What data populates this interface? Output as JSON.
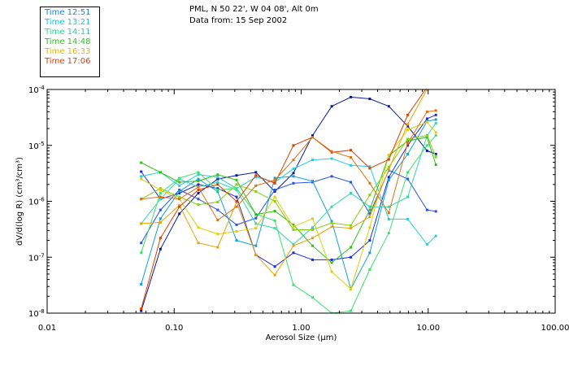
{
  "header": {
    "line1": "PML, N 50 22', W 04 08', Alt 0m",
    "line2": "Data from: 15 Sep 2002"
  },
  "legend": [
    {
      "label": "Time 12:51",
      "color": "#1a7fd8"
    },
    {
      "label": "Time 13:21",
      "color": "#10c8d8"
    },
    {
      "label": "Time 14:11",
      "color": "#20d890"
    },
    {
      "label": "Time 14:48",
      "color": "#30c020"
    },
    {
      "label": "Time 16:33",
      "color": "#e8b400"
    },
    {
      "label": "Time 17:06",
      "color": "#d84010"
    }
  ],
  "chart_data": {
    "type": "line",
    "title": "",
    "xlabel": "Aerosol Size (μm)",
    "ylabel": "dV/d(log R) (cm³/cm³)",
    "xscale": "log",
    "yscale": "log",
    "xlim": [
      0.01,
      100
    ],
    "ylim": [
      1e-08,
      0.0001
    ],
    "xticks": [
      {
        "value": 0.01,
        "label": "0.01"
      },
      {
        "value": 0.1,
        "label": "0.10"
      },
      {
        "value": 1,
        "label": "1.00"
      },
      {
        "value": 10,
        "label": "10.00"
      },
      {
        "value": 100,
        "label": "100.00"
      }
    ],
    "yticks": [
      {
        "value": 1e-08,
        "base": "10",
        "exp": "-8"
      },
      {
        "value": 1e-07,
        "base": "10",
        "exp": "-7"
      },
      {
        "value": 1e-06,
        "base": "10",
        "exp": "-6"
      },
      {
        "value": 1e-05,
        "base": "10",
        "exp": "-5"
      },
      {
        "value": 0.0001,
        "base": "10",
        "exp": "-4"
      }
    ],
    "x": [
      0.055,
      0.078,
      0.11,
      0.155,
      0.22,
      0.31,
      0.44,
      0.62,
      0.87,
      1.23,
      1.74,
      2.46,
      3.47,
      4.9,
      6.9,
      9.8,
      11.5
    ],
    "series": [
      {
        "name": "Time 12:51 (a)",
        "color": "#0a1a9a",
        "values": [
          1.1e-08,
          1.4e-07,
          6e-07,
          1.4e-06,
          2.5e-06,
          2.9e-06,
          3.3e-06,
          1.5e-06,
          3.2e-06,
          1.5e-05,
          5e-05,
          7.3e-05,
          6.8e-05,
          5e-05,
          2.2e-05,
          8e-06,
          7e-06
        ]
      },
      {
        "name": "Time 12:51 (b)",
        "color": "#1a2ad8",
        "values": [
          3.4e-06,
          1.1e-06,
          1.4e-06,
          2e-06,
          1.7e-06,
          1.2e-06,
          1.1e-07,
          6.8e-08,
          1.2e-07,
          9e-08,
          9e-08,
          1e-07,
          2e-07,
          2.7e-06,
          1e-05,
          3e-05,
          3.5e-05
        ]
      },
      {
        "name": "Time 12:51 (c)",
        "color": "#2a50e8",
        "values": [
          1.8e-07,
          7e-07,
          1.6e-06,
          1.1e-06,
          7e-07,
          3.8e-07,
          5e-07,
          1.6e-06,
          2.1e-06,
          2.2e-06,
          2.8e-06,
          2.2e-06,
          6e-07,
          3.6e-06,
          2.5e-06,
          7e-07,
          6.6e-07
        ]
      },
      {
        "name": "Time 13:21 (a)",
        "color": "#10a0e0",
        "values": [
          3.3e-08,
          4.9e-07,
          1.5e-06,
          2.5e-06,
          1.5e-06,
          2e-07,
          1.6e-07,
          2.6e-06,
          2.8e-06,
          2.3e-06,
          4.4e-07,
          2.7e-08,
          1.2e-07,
          2.4e-06,
          7e-06,
          2.7e-05,
          2.9e-05
        ]
      },
      {
        "name": "Time 13:21 (b)",
        "color": "#20d0e0",
        "values": [
          2.8e-06,
          3.3e-06,
          1.9e-06,
          3e-06,
          2.7e-06,
          1.7e-06,
          2.7e-06,
          2.2e-06,
          3.8e-06,
          5.5e-06,
          5.8e-06,
          4.4e-06,
          4.2e-06,
          4.8e-07,
          4.8e-07,
          1.7e-07,
          2.4e-07
        ]
      },
      {
        "name": "Time 13:21 (c)",
        "color": "#30d8b0",
        "values": [
          4e-07,
          1.1e-06,
          2.5e-06,
          1.8e-06,
          2.2e-06,
          1.6e-06,
          4e-07,
          3.3e-07,
          1.7e-07,
          3.4e-07,
          8e-07,
          1.4e-06,
          8e-07,
          8e-07,
          1.2e-06,
          1.5e-05,
          2.5e-05
        ]
      },
      {
        "name": "Time 14:11",
        "color": "#40e070",
        "values": [
          1.2e-07,
          1.4e-06,
          2.6e-06,
          3.3e-06,
          1.6e-06,
          1.7e-06,
          5.9e-07,
          4.5e-07,
          3.2e-08,
          1.9e-08,
          1e-08,
          1.1e-08,
          6e-08,
          2.7e-07,
          3.3e-06,
          1e-05,
          1.5e-05
        ]
      },
      {
        "name": "Time 14:48 (a)",
        "color": "#30c010",
        "values": [
          4.9e-06,
          3.3e-06,
          2.2e-06,
          2.3e-06,
          3e-06,
          2.4e-06,
          5.8e-07,
          6.7e-07,
          3.8e-07,
          1.6e-07,
          8e-08,
          1.5e-07,
          7e-07,
          6.6e-06,
          1.2e-05,
          1.4e-05,
          4.5e-06
        ]
      },
      {
        "name": "Time 14:48 (b)",
        "color": "#80d010",
        "values": [
          1.1e-06,
          1.7e-06,
          1.2e-06,
          8.7e-07,
          9.7e-07,
          2e-06,
          1.5e-06,
          1e-06,
          3.1e-07,
          3.1e-07,
          4.1e-07,
          3.7e-07,
          1.3e-06,
          4.1e-06,
          1.3e-05,
          1.5e-05,
          6.2e-06
        ]
      },
      {
        "name": "Time 16:33 (a)",
        "color": "#e0d000",
        "values": [
          2.5e-06,
          1.6e-06,
          1.1e-06,
          3.4e-07,
          2.6e-07,
          2.9e-07,
          3.3e-07,
          1.2e-06,
          3.5e-07,
          4.9e-07,
          5.5e-08,
          2.7e-08,
          3.4e-07,
          6.7e-06,
          1.9e-05,
          2.6e-05,
          1.7e-05
        ]
      },
      {
        "name": "Time 16:33 (b)",
        "color": "#f0a000",
        "values": [
          4e-07,
          4.2e-07,
          8.5e-07,
          1.8e-07,
          1.5e-07,
          9.7e-07,
          1.1e-07,
          4.8e-08,
          1.6e-07,
          2.2e-07,
          3.5e-07,
          3.3e-07,
          5.3e-07,
          3.7e-06,
          2.4e-05,
          0.0001,
          0.00011
        ]
      },
      {
        "name": "Time 17:06 (a)",
        "color": "#d84000",
        "values": [
          1.2e-08,
          2.2e-07,
          8e-07,
          1.6e-06,
          2e-06,
          1e-06,
          2.9e-06,
          2.1e-06,
          1e-05,
          1.4e-05,
          7.5e-06,
          8.2e-06,
          3.9e-06,
          5.6e-06,
          3.5e-05,
          0.00011,
          0.00011
        ]
      },
      {
        "name": "Time 17:06 (b)",
        "color": "#e07010",
        "values": [
          1.1e-06,
          1.2e-06,
          1.1e-06,
          1.8e-06,
          4.6e-07,
          8e-07,
          1.9e-06,
          2.4e-06,
          5.5e-06,
          1.4e-05,
          7.8e-06,
          6.1e-06,
          2.1e-06,
          6.2e-07,
          1.1e-05,
          4e-05,
          4.2e-05
        ]
      }
    ]
  }
}
